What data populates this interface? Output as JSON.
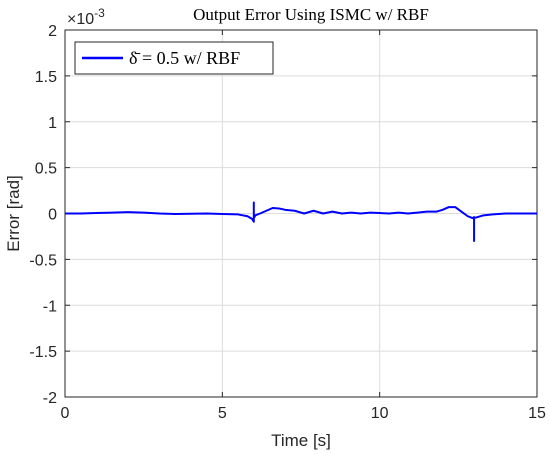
{
  "chart_data": {
    "type": "line",
    "title": "Output Error Using ISMC w/ RBF",
    "xlabel": "Time [s]",
    "ylabel": "Error [rad]",
    "xlim": [
      0,
      15
    ],
    "ylim": [
      -2,
      2
    ],
    "y_multiplier": "×10⁻³",
    "y_multiplier_base": "×10",
    "y_multiplier_exp": "-3",
    "xticks": [
      0,
      5,
      10,
      15
    ],
    "yticks": [
      2,
      1.5,
      1,
      0.5,
      0,
      -0.5,
      -1,
      -1.5,
      -2
    ],
    "ytick_labels": [
      "2",
      "1.5",
      "1",
      "0.5",
      "0",
      "-0.5",
      "-1",
      "-1.5",
      "-2"
    ],
    "grid": true,
    "legend_position": "top-left",
    "series": [
      {
        "name": "δ̄ = 0.5  w/ RBF",
        "color": "#0000ff",
        "x": [
          0,
          0.5,
          1.0,
          1.5,
          2.0,
          2.5,
          3.0,
          3.5,
          4.0,
          4.5,
          5.0,
          5.5,
          5.8,
          5.95,
          6.0,
          6.0,
          6.0,
          6.05,
          6.2,
          6.4,
          6.6,
          6.8,
          7.0,
          7.3,
          7.6,
          7.9,
          8.2,
          8.5,
          8.8,
          9.1,
          9.4,
          9.7,
          10.0,
          10.3,
          10.6,
          10.9,
          11.2,
          11.5,
          11.8,
          12.0,
          12.2,
          12.4,
          12.6,
          12.8,
          12.95,
          13.0,
          13.0,
          13.0,
          13.1,
          13.3,
          13.6,
          14.0,
          14.5,
          15.0
        ],
        "y": [
          0,
          0.0,
          0.005,
          0.01,
          0.015,
          0.01,
          0.0,
          -0.005,
          -0.003,
          0.0,
          -0.005,
          -0.01,
          -0.03,
          -0.06,
          -0.09,
          0.12,
          -0.05,
          -0.02,
          0.0,
          0.03,
          0.06,
          0.055,
          0.04,
          0.03,
          0.0,
          0.03,
          0.0,
          0.02,
          0.0,
          0.01,
          0.0,
          0.01,
          0.005,
          0.0,
          0.01,
          0.0,
          0.01,
          0.02,
          0.02,
          0.04,
          0.07,
          0.07,
          0.02,
          -0.03,
          -0.05,
          -0.04,
          -0.3,
          -0.05,
          -0.04,
          -0.02,
          -0.01,
          0.0,
          0.0,
          0.0
        ]
      }
    ]
  }
}
